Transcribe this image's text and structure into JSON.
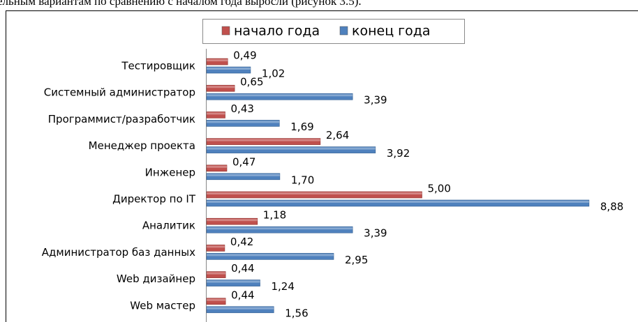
{
  "caption": "ельным вариантам по сравнению с началом года выросли (рисунок 3.5).",
  "chart_data": {
    "type": "hbar",
    "categories": [
      "Тестировщик",
      "Системный администратор",
      "Программист/разработчик",
      "Менеджер проекта",
      "Инженер",
      "Директор по IT",
      "Аналитик",
      "Администратор баз данных",
      "Web дизайнер",
      "Web мастер"
    ],
    "series": [
      {
        "name": "начало года",
        "color": "#c0504d",
        "values": [
          0.49,
          0.65,
          0.43,
          2.64,
          0.47,
          5.0,
          1.18,
          0.42,
          0.44,
          0.44
        ],
        "value_labels": [
          "0,49",
          "0,65",
          "0,43",
          "2,64",
          "0,47",
          "5,00",
          "1,18",
          "0,42",
          "0,44",
          "0,44"
        ]
      },
      {
        "name": "конец года",
        "color": "#4f81bd",
        "values": [
          1.02,
          3.39,
          1.69,
          3.92,
          1.7,
          8.88,
          3.39,
          2.95,
          1.24,
          1.56
        ],
        "value_labels": [
          "1,02",
          "3,39",
          "1,69",
          "3,92",
          "1,70",
          "8,88",
          "3,39",
          "2,95",
          "1,24",
          "1,56"
        ]
      }
    ],
    "legend": "top"
  }
}
